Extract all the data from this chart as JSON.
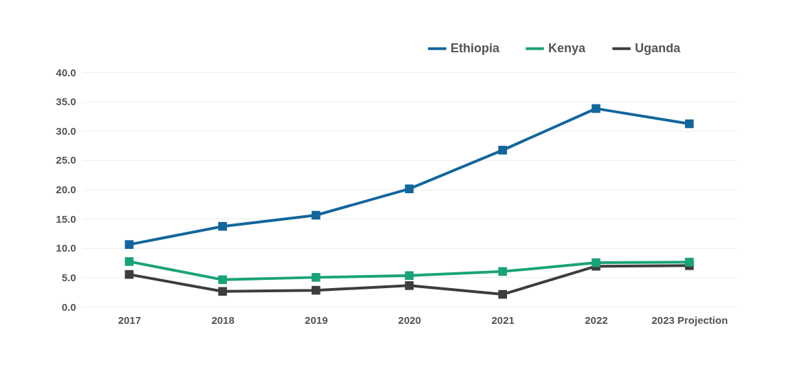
{
  "chart_data": {
    "type": "line",
    "categories": [
      "2017",
      "2018",
      "2019",
      "2020",
      "2021",
      "2022",
      "2023 Projection"
    ],
    "series": [
      {
        "name": "Ethiopia",
        "color": "#12669b",
        "values": [
          10.6,
          13.7,
          15.6,
          20.1,
          26.7,
          33.8,
          31.2
        ]
      },
      {
        "name": "Kenya",
        "color": "#1aa37a",
        "values": [
          7.7,
          4.6,
          5.0,
          5.3,
          6.0,
          7.5,
          7.6
        ]
      },
      {
        "name": "Uganda",
        "color": "#3d3d3d",
        "values": [
          5.5,
          2.6,
          2.8,
          3.6,
          2.1,
          6.9,
          7.0
        ]
      }
    ],
    "ylim": [
      0,
      40
    ],
    "yticks": [
      {
        "value": 0,
        "label": "0.0"
      },
      {
        "value": 5,
        "label": "5.0"
      },
      {
        "value": 10,
        "label": "10.0"
      },
      {
        "value": 15,
        "label": "15.0"
      },
      {
        "value": 20,
        "label": "20.0"
      },
      {
        "value": 25,
        "label": "25.0"
      },
      {
        "value": 30,
        "label": "30.0"
      },
      {
        "value": 35,
        "label": "35.0"
      },
      {
        "value": 40,
        "label": "40.0"
      }
    ],
    "grid": "y",
    "legend": "top right",
    "marker": "square",
    "line_style": "solid"
  }
}
